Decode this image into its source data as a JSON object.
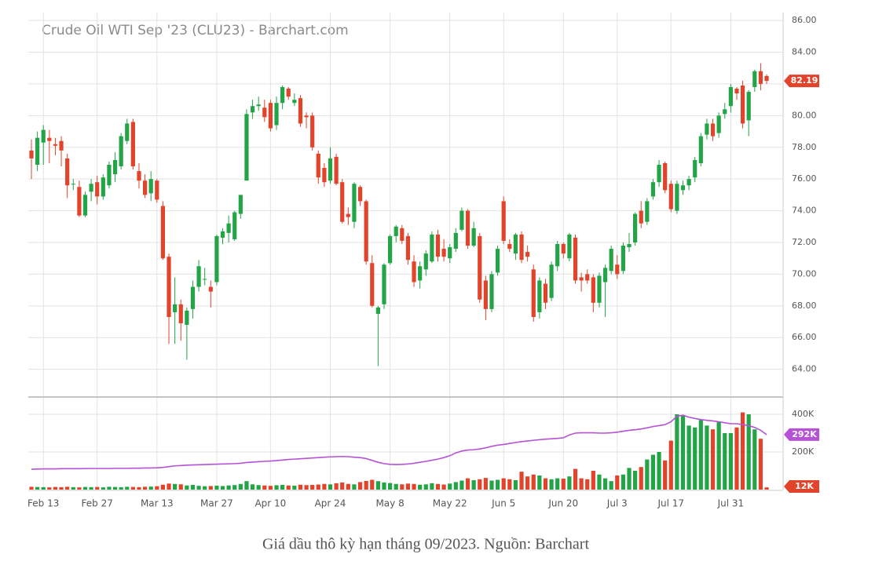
{
  "caption": "Giá dầu thô kỳ hạn tháng 09/2023. Nguồn: Barchart",
  "chart_data": {
    "type": "candlestick",
    "title": "Crude Oil WTI Sep '23 (CLU23) - Barchart.com",
    "up_color": "#22a447",
    "down_color": "#e2432b",
    "grid": true,
    "xticks": [
      {
        "value": 2,
        "label": "Feb 13"
      },
      {
        "value": 11,
        "label": "Feb 27"
      },
      {
        "value": 21,
        "label": "Mar 13"
      },
      {
        "value": 31,
        "label": "Mar 27"
      },
      {
        "value": 40,
        "label": "Apr 10"
      },
      {
        "value": 50,
        "label": "Apr 24"
      },
      {
        "value": 60,
        "label": "May 8"
      },
      {
        "value": 70,
        "label": "May 22"
      },
      {
        "value": 79,
        "label": "Jun 5"
      },
      {
        "value": 89,
        "label": "Jun 20"
      },
      {
        "value": 98,
        "label": "Jul 3"
      },
      {
        "value": 107,
        "label": "Jul 17"
      },
      {
        "value": 117,
        "label": "Jul 31"
      }
    ],
    "ylim": [
      62.3,
      86.5
    ],
    "yticks": [
      {
        "value": 64,
        "label": "64.00"
      },
      {
        "value": 66,
        "label": "66.00"
      },
      {
        "value": 68,
        "label": "68.00"
      },
      {
        "value": 70,
        "label": "70.00"
      },
      {
        "value": 72,
        "label": "72.00"
      },
      {
        "value": 74,
        "label": "74.00"
      },
      {
        "value": 76,
        "label": "76.00"
      },
      {
        "value": 78,
        "label": "78.00"
      },
      {
        "value": 80,
        "label": "80.00"
      },
      {
        "value": 82,
        "label": "82.00"
      },
      {
        "value": 84,
        "label": "84.00"
      },
      {
        "value": 86,
        "label": "86.00"
      }
    ],
    "ohlc": [
      [
        77.8,
        78.5,
        76.0,
        77.3
      ],
      [
        76.9,
        79.0,
        76.5,
        78.6
      ],
      [
        78.3,
        79.4,
        76.9,
        79.1
      ],
      [
        78.6,
        79.1,
        77.0,
        78.4
      ],
      [
        78.2,
        78.6,
        77.5,
        78.1
      ],
      [
        78.4,
        78.7,
        76.8,
        77.8
      ],
      [
        77.3,
        77.6,
        74.8,
        75.6
      ],
      [
        75.7,
        76.0,
        75.3,
        75.7
      ],
      [
        75.5,
        75.9,
        73.6,
        73.7
      ],
      [
        73.7,
        75.2,
        73.6,
        75.0
      ],
      [
        75.2,
        76.0,
        74.6,
        75.7
      ],
      [
        75.8,
        76.2,
        74.4,
        74.9
      ],
      [
        74.9,
        76.3,
        74.7,
        76.1
      ],
      [
        75.6,
        77.1,
        75.4,
        76.9
      ],
      [
        76.3,
        77.7,
        75.8,
        77.2
      ],
      [
        76.8,
        78.9,
        76.6,
        78.7
      ],
      [
        78.4,
        79.8,
        78.2,
        79.5
      ],
      [
        79.6,
        79.8,
        76.6,
        76.8
      ],
      [
        76.5,
        77.0,
        75.4,
        75.9
      ],
      [
        75.9,
        76.3,
        74.8,
        75.0
      ],
      [
        75.1,
        76.5,
        74.6,
        76.0
      ],
      [
        75.9,
        76.0,
        74.5,
        74.7
      ],
      [
        74.3,
        74.6,
        70.9,
        71.0
      ],
      [
        71.1,
        71.3,
        65.6,
        67.3
      ],
      [
        67.6,
        69.8,
        65.6,
        68.1
      ],
      [
        68.1,
        68.4,
        65.8,
        66.9
      ],
      [
        66.8,
        67.9,
        64.6,
        67.7
      ],
      [
        67.8,
        69.6,
        67.2,
        69.2
      ],
      [
        69.2,
        70.9,
        68.9,
        70.5
      ],
      [
        69.7,
        70.4,
        69.3,
        69.7
      ],
      [
        69.2,
        69.6,
        67.9,
        68.9
      ],
      [
        69.5,
        72.5,
        69.3,
        72.4
      ],
      [
        72.3,
        72.9,
        71.9,
        72.7
      ],
      [
        72.6,
        73.7,
        72.0,
        73.2
      ],
      [
        72.2,
        74.0,
        72.1,
        73.9
      ],
      [
        73.8,
        75.0,
        73.5,
        75.0
      ],
      [
        75.9,
        80.4,
        75.9,
        80.1
      ],
      [
        80.2,
        81.0,
        79.8,
        80.6
      ],
      [
        80.6,
        81.2,
        80.3,
        80.7
      ],
      [
        80.5,
        81.0,
        79.6,
        79.9
      ],
      [
        80.8,
        81.0,
        79.0,
        79.2
      ],
      [
        79.4,
        81.2,
        79.1,
        80.8
      ],
      [
        80.8,
        81.9,
        80.4,
        81.8
      ],
      [
        81.7,
        81.8,
        81.0,
        81.2
      ],
      [
        80.8,
        81.4,
        80.6,
        81.0
      ],
      [
        81.1,
        81.3,
        79.3,
        79.5
      ],
      [
        80.0,
        80.2,
        79.2,
        79.9
      ],
      [
        80.0,
        80.2,
        77.8,
        78.0
      ],
      [
        77.6,
        77.8,
        75.7,
        76.1
      ],
      [
        76.7,
        77.0,
        75.5,
        75.8
      ],
      [
        75.9,
        78.0,
        75.7,
        77.3
      ],
      [
        77.4,
        77.6,
        75.6,
        75.7
      ],
      [
        75.8,
        76.0,
        73.2,
        73.3
      ],
      [
        73.8,
        74.2,
        73.1,
        73.6
      ],
      [
        73.3,
        75.8,
        72.9,
        75.7
      ],
      [
        75.5,
        75.6,
        74.3,
        74.6
      ],
      [
        74.6,
        74.7,
        70.6,
        70.8
      ],
      [
        70.7,
        71.2,
        67.9,
        68.0
      ],
      [
        67.5,
        68.0,
        64.2,
        67.9
      ],
      [
        68.1,
        70.7,
        67.8,
        70.6
      ],
      [
        70.7,
        72.5,
        70.6,
        72.4
      ],
      [
        72.4,
        73.1,
        72.0,
        73.0
      ],
      [
        72.9,
        73.1,
        71.9,
        72.1
      ],
      [
        72.4,
        72.6,
        70.6,
        70.9
      ],
      [
        70.8,
        71.2,
        69.2,
        69.5
      ],
      [
        69.6,
        70.8,
        69.1,
        70.5
      ],
      [
        70.3,
        71.5,
        69.9,
        71.3
      ],
      [
        70.8,
        72.7,
        70.7,
        72.5
      ],
      [
        72.5,
        72.8,
        70.8,
        71.1
      ],
      [
        71.6,
        72.2,
        70.8,
        71.1
      ],
      [
        71.0,
        71.9,
        70.7,
        71.7
      ],
      [
        71.6,
        72.9,
        71.4,
        72.6
      ],
      [
        72.8,
        74.2,
        72.7,
        74.0
      ],
      [
        74.0,
        74.1,
        71.6,
        71.8
      ],
      [
        71.8,
        73.3,
        71.7,
        72.9
      ],
      [
        72.4,
        72.6,
        68.2,
        68.4
      ],
      [
        69.6,
        69.9,
        67.1,
        67.8
      ],
      [
        67.8,
        70.2,
        67.6,
        70.0
      ],
      [
        70.1,
        71.8,
        69.9,
        71.6
      ],
      [
        74.6,
        74.9,
        71.9,
        72.1
      ],
      [
        71.9,
        72.2,
        71.4,
        71.6
      ],
      [
        71.3,
        72.6,
        70.9,
        72.5
      ],
      [
        72.5,
        72.7,
        70.7,
        70.9
      ],
      [
        71.4,
        71.8,
        70.8,
        71.1
      ],
      [
        70.3,
        70.6,
        67.0,
        67.3
      ],
      [
        67.6,
        69.8,
        67.2,
        69.6
      ],
      [
        69.4,
        69.7,
        67.8,
        68.2
      ],
      [
        68.5,
        70.8,
        68.3,
        70.6
      ],
      [
        70.5,
        72.1,
        70.2,
        71.9
      ],
      [
        71.9,
        72.0,
        71.0,
        71.3
      ],
      [
        71.0,
        72.6,
        70.8,
        72.5
      ],
      [
        72.3,
        72.5,
        69.4,
        69.6
      ],
      [
        69.8,
        70.1,
        68.9,
        69.6
      ],
      [
        70.0,
        70.3,
        69.4,
        69.6
      ],
      [
        69.8,
        70.0,
        67.6,
        68.2
      ],
      [
        68.2,
        70.1,
        67.9,
        69.9
      ],
      [
        69.5,
        70.6,
        67.3,
        70.4
      ],
      [
        70.2,
        71.8,
        70.0,
        71.6
      ],
      [
        70.6,
        71.2,
        69.7,
        70.0
      ],
      [
        70.2,
        72.0,
        70.0,
        71.8
      ],
      [
        71.7,
        72.6,
        71.4,
        71.9
      ],
      [
        72.0,
        73.9,
        71.8,
        73.8
      ],
      [
        74.0,
        74.6,
        72.9,
        73.2
      ],
      [
        73.3,
        74.8,
        73.1,
        74.6
      ],
      [
        74.9,
        76.0,
        74.7,
        75.8
      ],
      [
        75.8,
        77.2,
        75.5,
        76.9
      ],
      [
        77.0,
        77.1,
        75.1,
        75.3
      ],
      [
        75.7,
        75.9,
        73.9,
        74.1
      ],
      [
        74.0,
        75.9,
        73.8,
        75.7
      ],
      [
        75.3,
        75.9,
        75.0,
        75.6
      ],
      [
        75.6,
        76.2,
        75.3,
        76.0
      ],
      [
        76.1,
        77.4,
        75.8,
        77.2
      ],
      [
        77.0,
        78.9,
        76.8,
        78.7
      ],
      [
        78.8,
        79.8,
        78.5,
        79.5
      ],
      [
        79.5,
        79.8,
        78.4,
        78.7
      ],
      [
        78.9,
        80.2,
        78.6,
        80.0
      ],
      [
        80.1,
        80.8,
        79.8,
        80.4
      ],
      [
        80.6,
        82.0,
        80.2,
        81.8
      ],
      [
        81.7,
        81.8,
        81.0,
        81.4
      ],
      [
        81.9,
        82.2,
        79.2,
        79.5
      ],
      [
        79.7,
        81.6,
        78.7,
        81.5
      ],
      [
        81.8,
        82.9,
        81.5,
        82.8
      ],
      [
        82.8,
        83.3,
        81.6,
        82.0
      ],
      [
        82.5,
        82.6,
        82.0,
        82.19
      ]
    ],
    "price_label_color": "#e2432b",
    "y2lim": [
      0,
      487500
    ],
    "y2ticks": [
      {
        "value": 200000,
        "label": "200K"
      },
      {
        "value": 400000,
        "label": "400K"
      }
    ],
    "volume": {
      "last_label": "12K",
      "values": [
        15000,
        14000,
        13000,
        12000,
        14000,
        13000,
        15000,
        13000,
        12000,
        14000,
        13000,
        14000,
        12000,
        15000,
        14000,
        13000,
        15000,
        14000,
        13000,
        15000,
        16000,
        18000,
        26000,
        32000,
        30000,
        28000,
        22000,
        25000,
        20000,
        18000,
        19000,
        21000,
        19000,
        22000,
        24000,
        30000,
        45000,
        28000,
        24000,
        22000,
        20000,
        23000,
        25000,
        22000,
        21000,
        26000,
        24000,
        25000,
        27000,
        30000,
        28000,
        34000,
        38000,
        30000,
        28000,
        40000,
        46000,
        52000,
        45000,
        38000,
        35000,
        30000,
        28000,
        32000,
        30000,
        26000,
        28000,
        34000,
        30000,
        27000,
        32000,
        40000,
        48000,
        60000,
        50000,
        55000,
        62000,
        48000,
        52000,
        60000,
        55000,
        50000,
        95000,
        70000,
        80000,
        75000,
        60000,
        55000,
        60000,
        58000,
        70000,
        110000,
        60000,
        55000,
        100000,
        80000,
        60000,
        45000,
        75000,
        80000,
        115000,
        100000,
        120000,
        160000,
        185000,
        200000,
        155000,
        260000,
        400000,
        395000,
        340000,
        330000,
        370000,
        340000,
        320000,
        360000,
        300000,
        300000,
        330000,
        410000,
        400000,
        320000,
        270000,
        12000
      ]
    },
    "volume_ma": {
      "color": "#b552d6",
      "last_label": "292K",
      "values": [
        108000,
        109000,
        110000,
        110000,
        110000,
        111000,
        111000,
        111000,
        111000,
        112000,
        112000,
        112000,
        112000,
        112000,
        113000,
        113000,
        113000,
        114000,
        114000,
        115000,
        115000,
        116000,
        118000,
        122000,
        126000,
        128000,
        130000,
        131000,
        132000,
        133000,
        134000,
        135000,
        136000,
        137000,
        138000,
        140000,
        144000,
        146000,
        148000,
        150000,
        152000,
        154000,
        157000,
        160000,
        162000,
        164000,
        166000,
        168000,
        170000,
        172000,
        174000,
        175000,
        176000,
        175000,
        172000,
        170000,
        165000,
        155000,
        145000,
        138000,
        134000,
        133000,
        134000,
        136000,
        140000,
        145000,
        150000,
        156000,
        162000,
        170000,
        180000,
        195000,
        205000,
        210000,
        212000,
        216000,
        222000,
        230000,
        236000,
        240000,
        245000,
        250000,
        255000,
        258000,
        262000,
        265000,
        268000,
        270000,
        272000,
        275000,
        290000,
        300000,
        302000,
        302000,
        302000,
        300000,
        300000,
        302000,
        305000,
        310000,
        315000,
        318000,
        322000,
        328000,
        335000,
        340000,
        345000,
        360000,
        390000,
        395000,
        385000,
        378000,
        372000,
        368000,
        365000,
        360000,
        355000,
        350000,
        350000,
        345000,
        340000,
        330000,
        315000,
        292000
      ]
    }
  }
}
